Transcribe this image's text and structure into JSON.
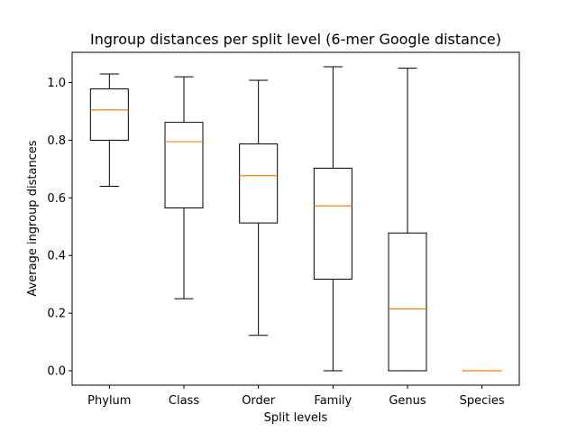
{
  "chart_data": {
    "type": "box",
    "title": "Ingroup distances per split level (6-mer Google distance)",
    "xlabel": "Split levels",
    "ylabel": "Average ingroup distances",
    "ylim": [
      -0.05,
      1.105
    ],
    "yticks": [
      0.0,
      0.2,
      0.4,
      0.6,
      0.8,
      1.0
    ],
    "ytick_labels": [
      "0.0",
      "0.2",
      "0.4",
      "0.6",
      "0.8",
      "1.0"
    ],
    "categories": [
      "Phylum",
      "Class",
      "Order",
      "Family",
      "Genus",
      "Species"
    ],
    "boxes": [
      {
        "category": "Phylum",
        "whisker_low": 0.64,
        "q1": 0.8,
        "median": 0.905,
        "q3": 0.978,
        "whisker_high": 1.03
      },
      {
        "category": "Class",
        "whisker_low": 0.25,
        "q1": 0.565,
        "median": 0.795,
        "q3": 0.862,
        "whisker_high": 1.02
      },
      {
        "category": "Order",
        "whisker_low": 0.123,
        "q1": 0.513,
        "median": 0.677,
        "q3": 0.787,
        "whisker_high": 1.008
      },
      {
        "category": "Family",
        "whisker_low": 0.0,
        "q1": 0.318,
        "median": 0.572,
        "q3": 0.703,
        "whisker_high": 1.055
      },
      {
        "category": "Genus",
        "whisker_low": 0.0,
        "q1": 0.0,
        "median": 0.215,
        "q3": 0.478,
        "whisker_high": 1.05
      },
      {
        "category": "Species",
        "whisker_low": 0.0,
        "q1": 0.0,
        "median": 0.0,
        "q3": 0.0,
        "whisker_high": 0.0
      }
    ],
    "grid": false,
    "colors": {
      "box": "#000000",
      "median": "#ff7f0e",
      "background": "#ffffff"
    }
  }
}
